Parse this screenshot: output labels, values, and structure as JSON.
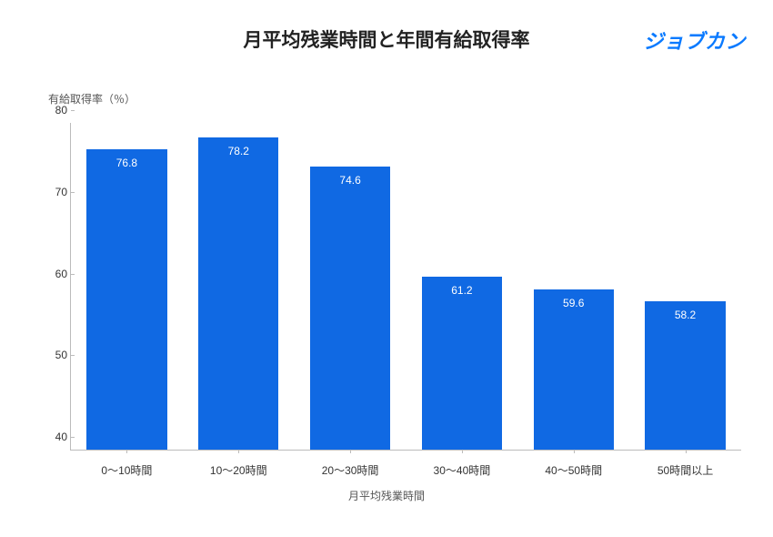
{
  "header": {
    "title": "月平均残業時間と年間有給取得率",
    "logo": "ジョブカン",
    "logo_color": "#0a7aff"
  },
  "chart": {
    "type": "bar",
    "y_axis_label": "有給取得率（％）",
    "x_axis_label": "月平均残業時間",
    "ylim": [
      40,
      80
    ],
    "ytick_step": 10,
    "yticks": [
      40,
      50,
      60,
      70,
      80
    ],
    "categories": [
      "0〜10時間",
      "10〜20時間",
      "20〜30時間",
      "30〜40時間",
      "40〜50時間",
      "50時間以上"
    ],
    "values": [
      76.8,
      78.2,
      74.6,
      61.2,
      59.6,
      58.2
    ],
    "bar_color": "#1069e3",
    "value_label_color": "#ffffff",
    "value_label_fontsize": 12,
    "axis_color": "#bbbbbb",
    "tick_label_color": "#333333",
    "tick_label_fontsize": 12,
    "background_color": "#ffffff",
    "title_fontsize": 21,
    "title_color": "#222222",
    "bar_width_ratio": 0.72
  }
}
